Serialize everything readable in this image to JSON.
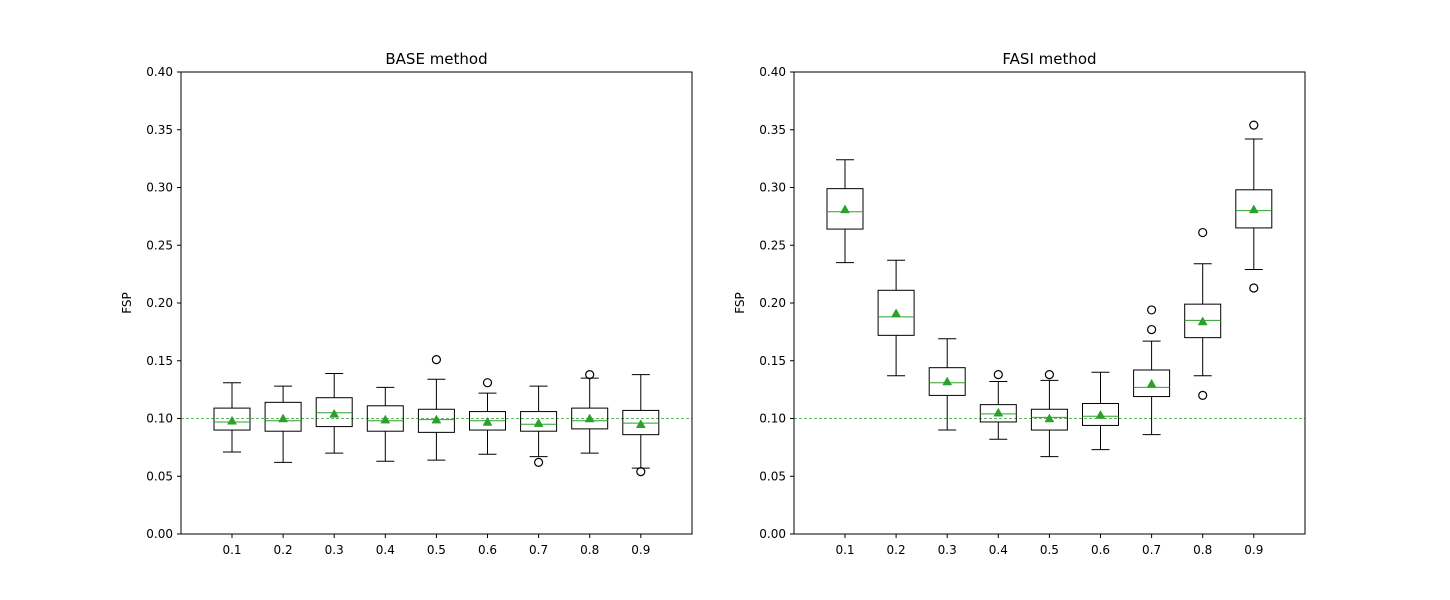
{
  "chart_data": [
    {
      "type": "box",
      "title": "BASE method",
      "xlabel": "",
      "ylabel": "FSP",
      "ylim": [
        0.0,
        0.4
      ],
      "yticks": [
        "0.00",
        "0.05",
        "0.10",
        "0.15",
        "0.20",
        "0.25",
        "0.30",
        "0.35",
        "0.40"
      ],
      "reference_line": 0.1,
      "categories": [
        "0.1",
        "0.2",
        "0.3",
        "0.4",
        "0.5",
        "0.6",
        "0.7",
        "0.8",
        "0.9"
      ],
      "boxes": [
        {
          "whislo": 0.071,
          "q1": 0.09,
          "med": 0.097,
          "q3": 0.109,
          "whishi": 0.131,
          "mean": 0.098,
          "fliers": []
        },
        {
          "whislo": 0.062,
          "q1": 0.089,
          "med": 0.098,
          "q3": 0.114,
          "whishi": 0.128,
          "mean": 0.1,
          "fliers": []
        },
        {
          "whislo": 0.07,
          "q1": 0.093,
          "med": 0.105,
          "q3": 0.118,
          "whishi": 0.139,
          "mean": 0.104,
          "fliers": []
        },
        {
          "whislo": 0.063,
          "q1": 0.089,
          "med": 0.098,
          "q3": 0.111,
          "whishi": 0.127,
          "mean": 0.099,
          "fliers": []
        },
        {
          "whislo": 0.064,
          "q1": 0.088,
          "med": 0.099,
          "q3": 0.108,
          "whishi": 0.134,
          "mean": 0.099,
          "fliers": [
            0.151
          ]
        },
        {
          "whislo": 0.069,
          "q1": 0.09,
          "med": 0.098,
          "q3": 0.106,
          "whishi": 0.122,
          "mean": 0.097,
          "fliers": [
            0.131
          ]
        },
        {
          "whislo": 0.067,
          "q1": 0.089,
          "med": 0.095,
          "q3": 0.106,
          "whishi": 0.128,
          "mean": 0.096,
          "fliers": [
            0.062
          ]
        },
        {
          "whislo": 0.07,
          "q1": 0.091,
          "med": 0.098,
          "q3": 0.109,
          "whishi": 0.135,
          "mean": 0.1,
          "fliers": [
            0.138
          ]
        },
        {
          "whislo": 0.057,
          "q1": 0.086,
          "med": 0.096,
          "q3": 0.107,
          "whishi": 0.138,
          "mean": 0.095,
          "fliers": [
            0.054
          ]
        }
      ]
    },
    {
      "type": "box",
      "title": "FASI method",
      "xlabel": "",
      "ylabel": "FSP",
      "ylim": [
        0.0,
        0.4
      ],
      "yticks": [
        "0.00",
        "0.05",
        "0.10",
        "0.15",
        "0.20",
        "0.25",
        "0.30",
        "0.35",
        "0.40"
      ],
      "reference_line": 0.1,
      "categories": [
        "0.1",
        "0.2",
        "0.3",
        "0.4",
        "0.5",
        "0.6",
        "0.7",
        "0.8",
        "0.9"
      ],
      "boxes": [
        {
          "whislo": 0.235,
          "q1": 0.264,
          "med": 0.279,
          "q3": 0.299,
          "whishi": 0.324,
          "mean": 0.281,
          "fliers": []
        },
        {
          "whislo": 0.137,
          "q1": 0.172,
          "med": 0.188,
          "q3": 0.211,
          "whishi": 0.237,
          "mean": 0.191,
          "fliers": []
        },
        {
          "whislo": 0.09,
          "q1": 0.12,
          "med": 0.131,
          "q3": 0.144,
          "whishi": 0.169,
          "mean": 0.132,
          "fliers": []
        },
        {
          "whislo": 0.082,
          "q1": 0.097,
          "med": 0.104,
          "q3": 0.112,
          "whishi": 0.132,
          "mean": 0.105,
          "fliers": [
            0.138
          ]
        },
        {
          "whislo": 0.067,
          "q1": 0.09,
          "med": 0.101,
          "q3": 0.108,
          "whishi": 0.133,
          "mean": 0.1,
          "fliers": [
            0.138
          ]
        },
        {
          "whislo": 0.073,
          "q1": 0.094,
          "med": 0.102,
          "q3": 0.113,
          "whishi": 0.14,
          "mean": 0.103,
          "fliers": []
        },
        {
          "whislo": 0.086,
          "q1": 0.119,
          "med": 0.127,
          "q3": 0.142,
          "whishi": 0.167,
          "mean": 0.13,
          "fliers": [
            0.177,
            0.194
          ]
        },
        {
          "whislo": 0.137,
          "q1": 0.17,
          "med": 0.185,
          "q3": 0.199,
          "whishi": 0.234,
          "mean": 0.184,
          "fliers": [
            0.12,
            0.261
          ]
        },
        {
          "whislo": 0.229,
          "q1": 0.265,
          "med": 0.28,
          "q3": 0.298,
          "whishi": 0.342,
          "mean": 0.281,
          "fliers": [
            0.213,
            0.354
          ]
        }
      ]
    }
  ],
  "colors": {
    "box": "#000000",
    "median": "#2ca02c",
    "mean": "#2ca02c",
    "reference_line": "#2ca02c",
    "flier": "#000000",
    "background": "#ffffff"
  }
}
